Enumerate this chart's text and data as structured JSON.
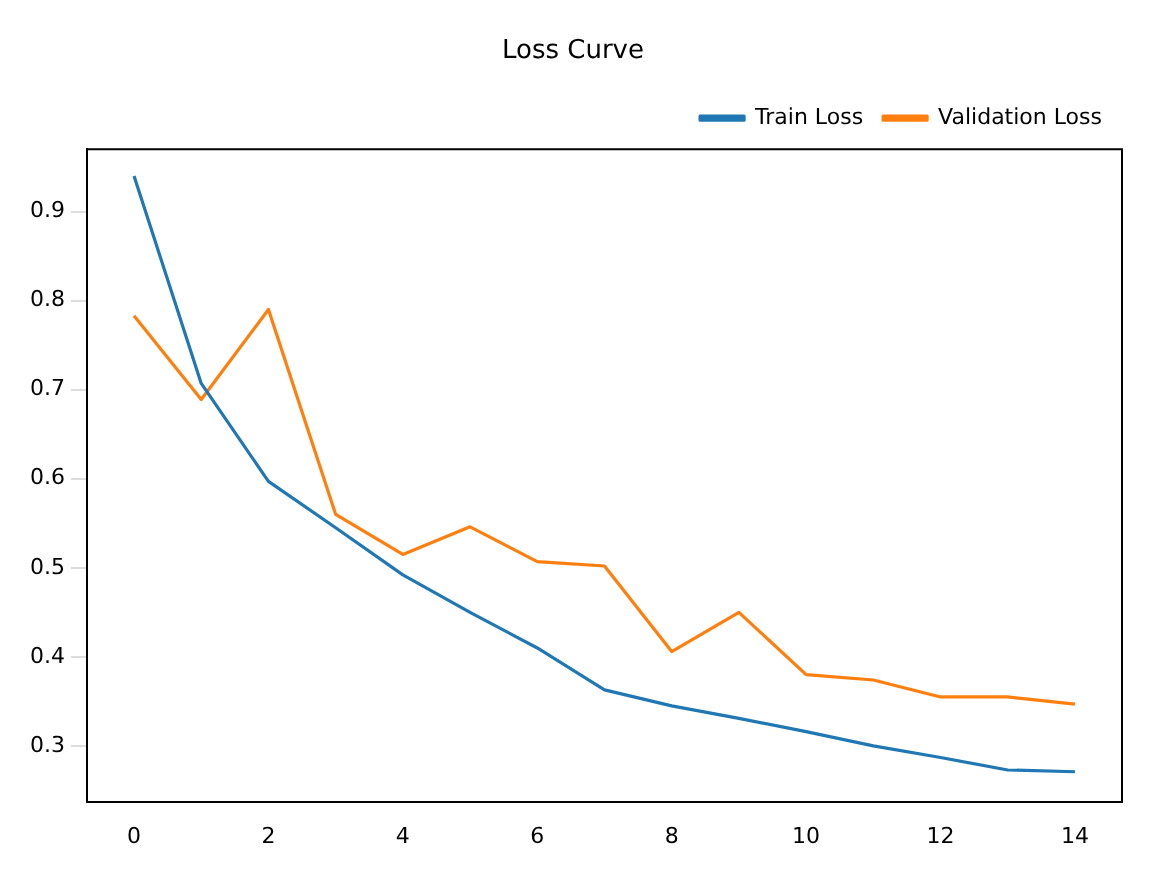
{
  "chart_data": {
    "type": "line",
    "title": "Loss Curve",
    "x": [
      0,
      1,
      2,
      3,
      4,
      5,
      6,
      7,
      8,
      9,
      10,
      11,
      12,
      13,
      14
    ],
    "series": [
      {
        "name": "Train Loss",
        "color": "#1f77b4",
        "values": [
          0.94,
          0.707,
          0.597,
          0.545,
          0.492,
          0.45,
          0.41,
          0.363,
          0.345,
          0.331,
          0.316,
          0.3,
          0.287,
          0.273,
          0.271
        ]
      },
      {
        "name": "Validation Loss",
        "color": "#ff7f0e",
        "values": [
          0.783,
          0.689,
          0.79,
          0.56,
          0.515,
          0.546,
          0.507,
          0.502,
          0.406,
          0.45,
          0.38,
          0.374,
          0.355,
          0.355,
          0.347
        ]
      }
    ],
    "xlim": [
      -0.7,
      14.7
    ],
    "xticks": [
      0,
      2,
      4,
      6,
      8,
      10,
      12,
      14
    ],
    "ylim": [
      0.2375,
      0.97
    ],
    "yticks": [
      0.3,
      0.4,
      0.5,
      0.6,
      0.7,
      0.8,
      0.9
    ],
    "grid": false,
    "legend": "top right",
    "marker": "none",
    "line_style": "solid"
  }
}
